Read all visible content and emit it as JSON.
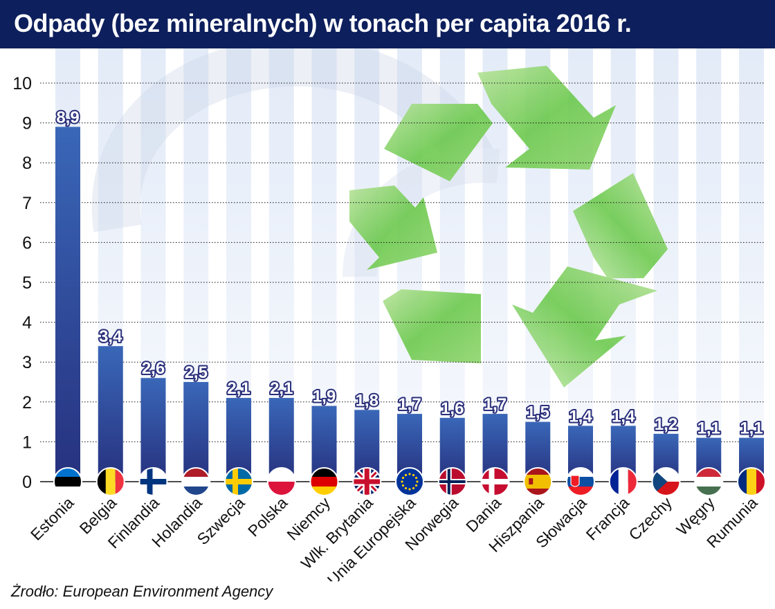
{
  "title": "Odpady (bez mineralnych) w tonach per capita 2016 r.",
  "source": "Żrodło: European Environment Agency",
  "colors": {
    "title_bg": "#0d1f5c",
    "bar_top": "#3a67b8",
    "bar_bottom": "#26317e",
    "label_fill": "#ffffff",
    "label_stroke": "#2a2f7a",
    "axis": "#111111",
    "recycle": "#6cc94e"
  },
  "chart_data": {
    "type": "bar",
    "title": "Odpady (bez mineralnych) w tonach per capita 2016 r.",
    "xlabel": "",
    "ylabel": "",
    "ylim": [
      0,
      10
    ],
    "yticks": [
      0,
      1,
      2,
      3,
      4,
      5,
      6,
      7,
      8,
      9,
      10
    ],
    "categories": [
      "Estonia",
      "Belgia",
      "Finlandia",
      "Holandia",
      "Szwecja",
      "Polska",
      "Niemcy",
      "Wlk. Brytania",
      "Unia Europejska",
      "Norwegia",
      "Dania",
      "Hiszpania",
      "Słowacja",
      "Francja",
      "Czechy",
      "Węgry",
      "Rumunia"
    ],
    "values": [
      8.9,
      3.4,
      2.6,
      2.5,
      2.1,
      2.1,
      1.9,
      1.8,
      1.7,
      1.6,
      1.7,
      1.5,
      1.4,
      1.4,
      1.2,
      1.1,
      1.1
    ],
    "value_labels": [
      "8,9",
      "3,4",
      "2,6",
      "2,5",
      "2,1",
      "2,1",
      "1,9",
      "1,8",
      "1,7",
      "1,6",
      "1,7",
      "1,5",
      "1,4",
      "1,4",
      "1,2",
      "1,1",
      "1,1"
    ],
    "flags": [
      "estonia-flag-icon",
      "belgium-flag-icon",
      "finland-flag-icon",
      "netherlands-flag-icon",
      "sweden-flag-icon",
      "poland-flag-icon",
      "germany-flag-icon",
      "uk-flag-icon",
      "eu-flag-icon",
      "norway-flag-icon",
      "denmark-flag-icon",
      "spain-flag-icon",
      "slovakia-flag-icon",
      "france-flag-icon",
      "czechia-flag-icon",
      "hungary-flag-icon",
      "romania-flag-icon"
    ]
  }
}
